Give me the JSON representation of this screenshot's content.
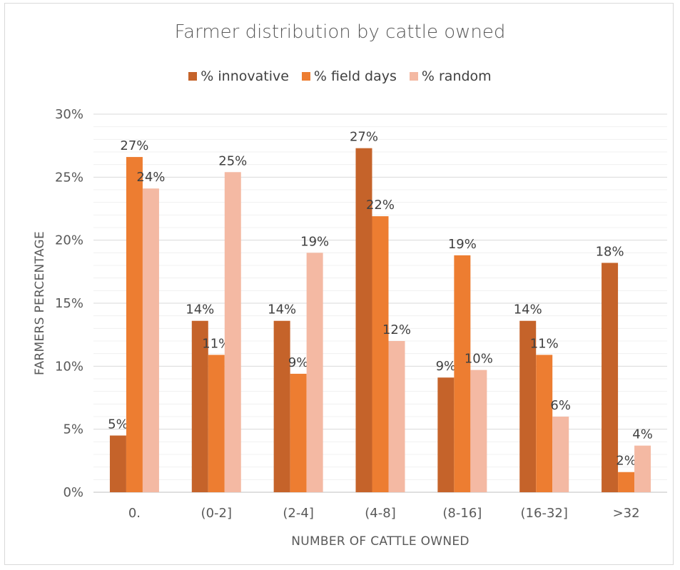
{
  "chart_data": {
    "type": "bar",
    "title": "Farmer distribution by cattle owned",
    "xlabel": "NUMBER OF CATTLE OWNED",
    "ylabel": "FARMERS PERCENTAGE",
    "categories": [
      "0.",
      "(0-2]",
      "(2-4]",
      "(4-8]",
      "(8-16]",
      "(16-32]",
      ">32"
    ],
    "ylim": [
      0,
      30
    ],
    "yticks": [
      "0%",
      "5%",
      "10%",
      "15%",
      "20%",
      "25%",
      "30%"
    ],
    "grid": "horizontal major and minor",
    "legend_position": "top",
    "series": [
      {
        "name": "% innovative",
        "color": "#c5632a",
        "values": [
          4.5,
          13.6,
          13.6,
          27.3,
          9.1,
          13.6,
          18.2
        ],
        "labels": [
          "5%",
          "14%",
          "14%",
          "27%",
          "9%",
          "14%",
          "18%"
        ]
      },
      {
        "name": "% field days",
        "color": "#ed7d31",
        "values": [
          26.6,
          10.9,
          9.4,
          21.9,
          18.8,
          10.9,
          1.6
        ],
        "labels": [
          "27%",
          "11%",
          "9%",
          "22%",
          "19%",
          "11%",
          "2%"
        ]
      },
      {
        "name": "% random",
        "color": "#f4b9a3",
        "values": [
          24.1,
          25.4,
          19.0,
          12.0,
          9.7,
          6.0,
          3.7
        ],
        "labels": [
          "24%",
          "25%",
          "19%",
          "12%",
          "10%",
          "6%",
          "4%"
        ]
      }
    ]
  }
}
